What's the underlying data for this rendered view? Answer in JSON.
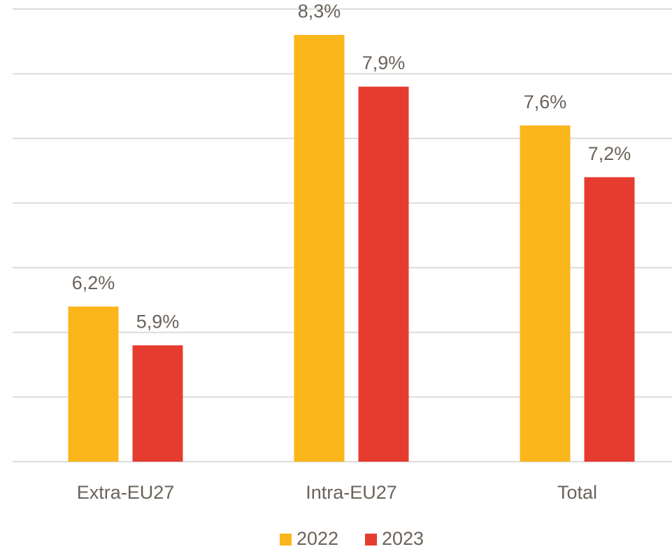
{
  "chart_data": {
    "type": "bar",
    "categories": [
      "Extra-EU27",
      "Intra-EU27",
      "Total"
    ],
    "series": [
      {
        "name": "2022",
        "color": "#fbb61b",
        "values": [
          6.2,
          8.3,
          7.6
        ],
        "value_labels": [
          "6,2%",
          "8,3%",
          "7,6%"
        ]
      },
      {
        "name": "2023",
        "color": "#e63c2f",
        "values": [
          5.9,
          7.9,
          7.2
        ],
        "value_labels": [
          "5,9%",
          "7,9%",
          "7,2%"
        ]
      }
    ],
    "ylim": [
      5,
      8.5
    ],
    "yticks": [
      5,
      5.5,
      6,
      6.5,
      7,
      7.5,
      8,
      8.5
    ],
    "grid": true,
    "legend": "bottom"
  }
}
